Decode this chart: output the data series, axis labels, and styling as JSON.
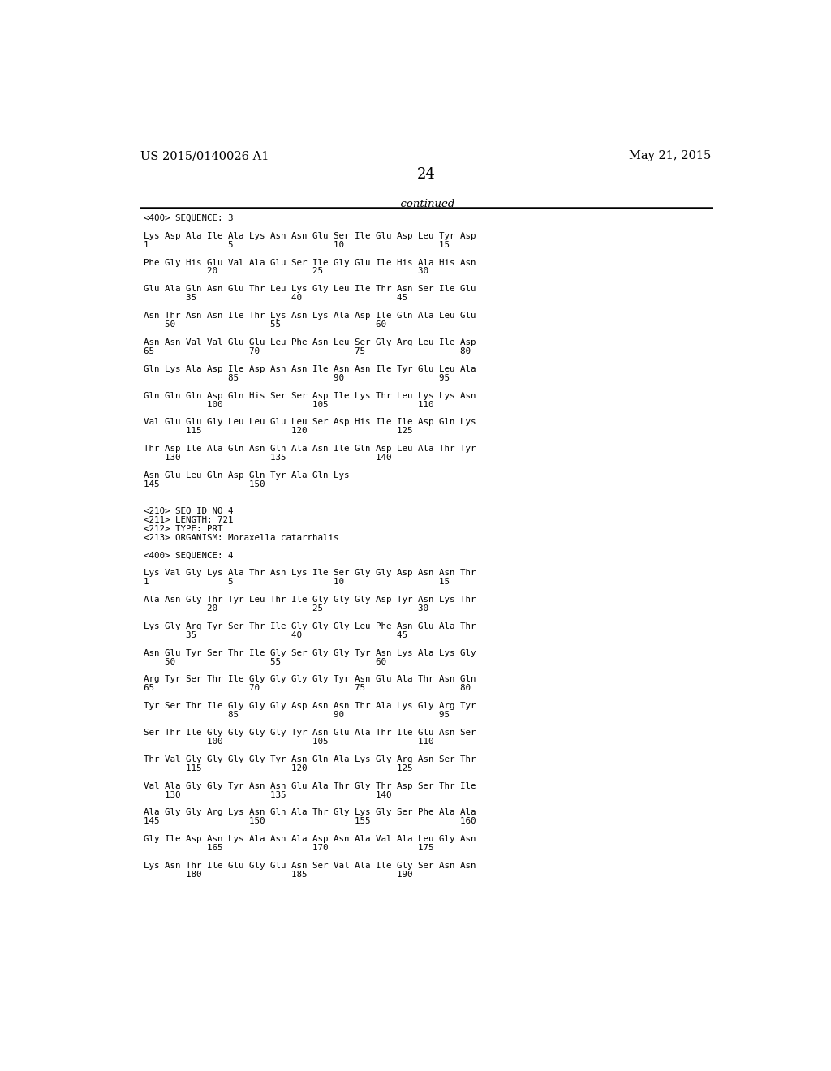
{
  "header_left": "US 2015/0140026 A1",
  "header_right": "May 21, 2015",
  "page_number": "24",
  "continued_text": "-continued",
  "bg_color": "#ffffff",
  "text_color": "#000000",
  "content_lines": [
    "<400> SEQUENCE: 3",
    "",
    "Lys Asp Ala Ile Ala Lys Asn Asn Glu Ser Ile Glu Asp Leu Tyr Asp",
    "1               5                   10                  15",
    "",
    "Phe Gly His Glu Val Ala Glu Ser Ile Gly Glu Ile His Ala His Asn",
    "            20                  25                  30",
    "",
    "Glu Ala Gln Asn Glu Thr Leu Lys Gly Leu Ile Thr Asn Ser Ile Glu",
    "        35                  40                  45",
    "",
    "Asn Thr Asn Asn Ile Thr Lys Asn Lys Ala Asp Ile Gln Ala Leu Glu",
    "    50                  55                  60",
    "",
    "Asn Asn Val Val Glu Glu Leu Phe Asn Leu Ser Gly Arg Leu Ile Asp",
    "65                  70                  75                  80",
    "",
    "Gln Lys Ala Asp Ile Asp Asn Asn Ile Asn Asn Ile Tyr Glu Leu Ala",
    "                85                  90                  95",
    "",
    "Gln Gln Gln Asp Gln His Ser Ser Asp Ile Lys Thr Leu Lys Lys Asn",
    "            100                 105                 110",
    "",
    "Val Glu Glu Gly Leu Leu Glu Leu Ser Asp His Ile Ile Asp Gln Lys",
    "        115                 120                 125",
    "",
    "Thr Asp Ile Ala Gln Asn Gln Ala Asn Ile Gln Asp Leu Ala Thr Tyr",
    "    130                 135                 140",
    "",
    "Asn Glu Leu Gln Asp Gln Tyr Ala Gln Lys",
    "145                 150",
    "",
    "",
    "<210> SEQ ID NO 4",
    "<211> LENGTH: 721",
    "<212> TYPE: PRT",
    "<213> ORGANISM: Moraxella catarrhalis",
    "",
    "<400> SEQUENCE: 4",
    "",
    "Lys Val Gly Lys Ala Thr Asn Lys Ile Ser Gly Gly Asp Asn Asn Thr",
    "1               5                   10                  15",
    "",
    "Ala Asn Gly Thr Tyr Leu Thr Ile Gly Gly Gly Asp Tyr Asn Lys Thr",
    "            20                  25                  30",
    "",
    "Lys Gly Arg Tyr Ser Thr Ile Gly Gly Gly Leu Phe Asn Glu Ala Thr",
    "        35                  40                  45",
    "",
    "Asn Glu Tyr Ser Thr Ile Gly Ser Gly Gly Tyr Asn Lys Ala Lys Gly",
    "    50                  55                  60",
    "",
    "Arg Tyr Ser Thr Ile Gly Gly Gly Gly Tyr Asn Glu Ala Thr Asn Gln",
    "65                  70                  75                  80",
    "",
    "Tyr Ser Thr Ile Gly Gly Gly Asp Asn Asn Thr Ala Lys Gly Arg Tyr",
    "                85                  90                  95",
    "",
    "Ser Thr Ile Gly Gly Gly Gly Tyr Asn Glu Ala Thr Ile Glu Asn Ser",
    "            100                 105                 110",
    "",
    "Thr Val Gly Gly Gly Gly Tyr Asn Gln Ala Lys Gly Arg Asn Ser Thr",
    "        115                 120                 125",
    "",
    "Val Ala Gly Gly Tyr Asn Asn Glu Ala Thr Gly Thr Asp Ser Thr Ile",
    "    130                 135                 140",
    "",
    "Ala Gly Gly Arg Lys Asn Gln Ala Thr Gly Lys Gly Ser Phe Ala Ala",
    "145                 150                 155                 160",
    "",
    "Gly Ile Asp Asn Lys Ala Asn Ala Asp Asn Ala Val Ala Leu Gly Asn",
    "            165                 170                 175",
    "",
    "Lys Asn Thr Ile Glu Gly Glu Asn Ser Val Ala Ile Gly Ser Asn Asn",
    "        180                 185                 190"
  ]
}
